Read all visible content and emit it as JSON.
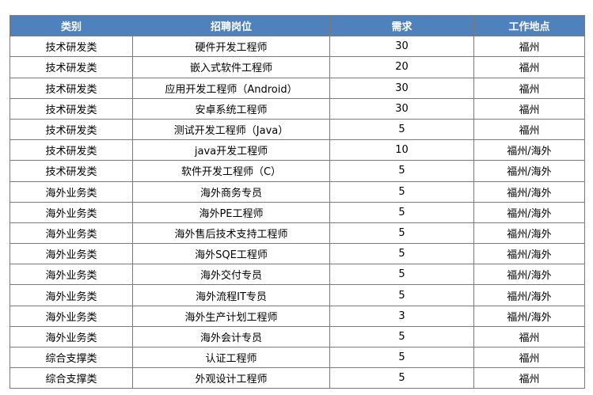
{
  "table": {
    "header": [
      "类别",
      "招聘岗位",
      "需求",
      "工作地点"
    ],
    "rows": [
      [
        "技术研发类",
        "硬件开发工程师",
        "30",
        "福州"
      ],
      [
        "技术研发类",
        "嵌入式软件工程师",
        "20",
        "福州"
      ],
      [
        "技术研发类",
        "应用开发工程师（Android）",
        "30",
        "福州"
      ],
      [
        "技术研发类",
        "安卓系统工程师",
        "30",
        "福州"
      ],
      [
        "技术研发类",
        "测试开发工程师（Java）",
        "5",
        "福州"
      ],
      [
        "技术研发类",
        "java开发工程师",
        "10",
        "福州/海外"
      ],
      [
        "技术研发类",
        "软件开发工程师（C）",
        "5",
        "福州/海外"
      ],
      [
        "海外业务类",
        "海外商务专员",
        "5",
        "福州/海外"
      ],
      [
        "海外业务类",
        "海外PE工程师",
        "5",
        "福州/海外"
      ],
      [
        "海外业务类",
        "海外售后技术支持工程师",
        "5",
        "福州/海外"
      ],
      [
        "海外业务类",
        "海外SQE工程师",
        "5",
        "福州/海外"
      ],
      [
        "海外业务类",
        "海外交付专员",
        "5",
        "福州/海外"
      ],
      [
        "海外业务类",
        "海外流程IT专员",
        "5",
        "福州/海外"
      ],
      [
        "海外业务类",
        "海外生产计划工程师",
        "3",
        "福州/海外"
      ],
      [
        "海外业务类",
        "海外会计专员",
        "5",
        "福州"
      ],
      [
        "综合支撑类",
        "认证工程师",
        "5",
        "福州"
      ],
      [
        "综合支撑类",
        "外观设计工程师",
        "5",
        "福州"
      ]
    ]
  }
}
